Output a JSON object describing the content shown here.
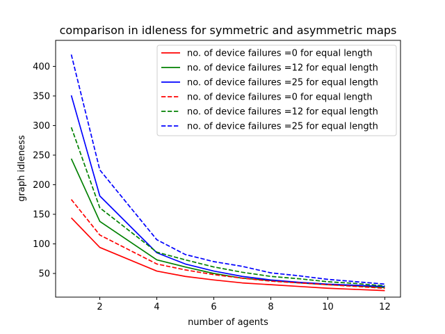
{
  "chart_data": {
    "type": "line",
    "title": "comparison in idleness for symmetric and asymmetric maps",
    "xlabel": "number of agents",
    "ylabel": "graph idleness",
    "xlim": [
      0.45,
      12.55
    ],
    "ylim": [
      10,
      444
    ],
    "xticks": [
      2,
      4,
      6,
      8,
      10,
      12
    ],
    "yticks": [
      50,
      100,
      150,
      200,
      250,
      300,
      350,
      400
    ],
    "grid": false,
    "legend_position": "upper right",
    "x": [
      1,
      2,
      4,
      5,
      6,
      7,
      8,
      9,
      10,
      11,
      12
    ],
    "series": [
      {
        "name": "no. of device failures =0 for equal length",
        "color": "#ff0000",
        "dash": "solid",
        "values": [
          144,
          94,
          54,
          45,
          39,
          34,
          31,
          28,
          25,
          23,
          21
        ]
      },
      {
        "name": "no. of device failures =12 for equal length",
        "color": "#008000",
        "dash": "solid",
        "values": [
          244,
          138,
          73,
          61,
          50,
          42,
          38,
          34,
          31,
          29,
          26
        ]
      },
      {
        "name": "no. of device failures =25 for equal length",
        "color": "#0000ff",
        "dash": "solid",
        "values": [
          351,
          181,
          85,
          66,
          54,
          45,
          39,
          35,
          32,
          30,
          28
        ]
      },
      {
        "name": "no. of device failures =0 for equal length",
        "color": "#ff0000",
        "dash": "dashed",
        "values": [
          175,
          115,
          66,
          56,
          48,
          42,
          37,
          34,
          31,
          28,
          25
        ]
      },
      {
        "name": "no. of device failures =12 for equal length",
        "color": "#008000",
        "dash": "dashed",
        "values": [
          297,
          161,
          86,
          73,
          61,
          52,
          45,
          41,
          36,
          33,
          29
        ]
      },
      {
        "name": "no. of device failures =25 for equal length",
        "color": "#0000ff",
        "dash": "dashed",
        "values": [
          420,
          225,
          107,
          82,
          70,
          62,
          51,
          46,
          40,
          36,
          32
        ]
      }
    ]
  }
}
